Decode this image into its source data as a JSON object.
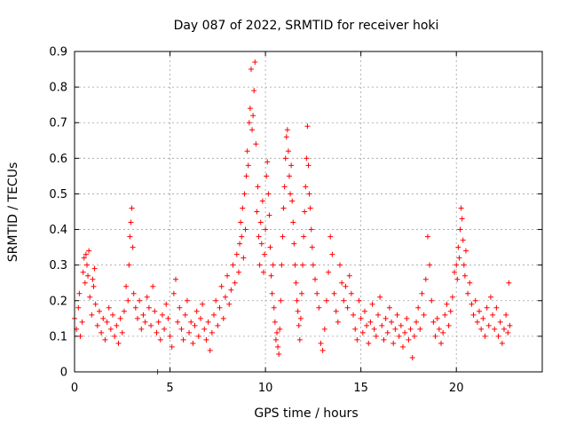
{
  "chart_data": {
    "type": "scatter",
    "title": "Day 087 of 2022, SRMTID for receiver hoki",
    "xlabel": "GPS time / hours",
    "ylabel": "SRMTID / TECUs",
    "xlim": [
      0,
      24.5
    ],
    "ylim": [
      0,
      0.9
    ],
    "xticks": [
      0,
      5,
      10,
      15,
      20
    ],
    "xtick_labels": [
      "0",
      "5",
      "10",
      "15",
      "20"
    ],
    "yticks": [
      0,
      0.1,
      0.2,
      0.3,
      0.4,
      0.5,
      0.6,
      0.7,
      0.8,
      0.9
    ],
    "ytick_labels": [
      "0",
      "0.1",
      "0.2",
      "0.3",
      "0.4",
      "0.5",
      "0.6",
      "0.7",
      "0.8",
      "0.9"
    ],
    "grid": true,
    "marker": "+",
    "color": "#ff0000",
    "series": [
      {
        "name": "SRMTID",
        "points": [
          [
            0.0,
            0.15
          ],
          [
            0.1,
            0.12
          ],
          [
            0.2,
            0.18
          ],
          [
            0.25,
            0.22
          ],
          [
            0.3,
            0.1
          ],
          [
            0.4,
            0.14
          ],
          [
            0.45,
            0.28
          ],
          [
            0.5,
            0.32
          ],
          [
            0.55,
            0.25
          ],
          [
            0.6,
            0.33
          ],
          [
            0.65,
            0.3
          ],
          [
            0.7,
            0.27
          ],
          [
            0.75,
            0.34
          ],
          [
            0.8,
            0.21
          ],
          [
            0.9,
            0.16
          ],
          [
            0.95,
            0.26
          ],
          [
            1.0,
            0.24
          ],
          [
            1.05,
            0.29
          ],
          [
            1.1,
            0.19
          ],
          [
            1.2,
            0.13
          ],
          [
            1.3,
            0.17
          ],
          [
            1.4,
            0.11
          ],
          [
            1.5,
            0.15
          ],
          [
            1.6,
            0.09
          ],
          [
            1.7,
            0.14
          ],
          [
            1.8,
            0.18
          ],
          [
            1.9,
            0.12
          ],
          [
            2.0,
            0.16
          ],
          [
            2.1,
            0.1
          ],
          [
            2.2,
            0.13
          ],
          [
            2.3,
            0.08
          ],
          [
            2.4,
            0.15
          ],
          [
            2.5,
            0.11
          ],
          [
            2.6,
            0.17
          ],
          [
            2.7,
            0.24
          ],
          [
            2.8,
            0.2
          ],
          [
            2.85,
            0.3
          ],
          [
            2.9,
            0.38
          ],
          [
            2.95,
            0.42
          ],
          [
            3.0,
            0.46
          ],
          [
            3.05,
            0.35
          ],
          [
            3.1,
            0.22
          ],
          [
            3.2,
            0.18
          ],
          [
            3.3,
            0.15
          ],
          [
            3.4,
            0.2
          ],
          [
            3.5,
            0.12
          ],
          [
            3.6,
            0.16
          ],
          [
            3.7,
            0.14
          ],
          [
            3.8,
            0.21
          ],
          [
            3.9,
            0.18
          ],
          [
            4.0,
            0.13
          ],
          [
            4.1,
            0.24
          ],
          [
            4.2,
            0.17
          ],
          [
            4.3,
            0.11
          ],
          [
            4.35,
            0.0
          ],
          [
            4.4,
            0.14
          ],
          [
            4.5,
            0.09
          ],
          [
            4.6,
            0.16
          ],
          [
            4.7,
            0.12
          ],
          [
            4.8,
            0.19
          ],
          [
            4.9,
            0.15
          ],
          [
            5.0,
            0.1
          ],
          [
            5.1,
            0.07
          ],
          [
            5.2,
            0.22
          ],
          [
            5.3,
            0.26
          ],
          [
            5.4,
            0.14
          ],
          [
            5.5,
            0.18
          ],
          [
            5.6,
            0.12
          ],
          [
            5.7,
            0.09
          ],
          [
            5.8,
            0.16
          ],
          [
            5.9,
            0.2
          ],
          [
            6.0,
            0.11
          ],
          [
            6.1,
            0.14
          ],
          [
            6.2,
            0.08
          ],
          [
            6.3,
            0.13
          ],
          [
            6.4,
            0.17
          ],
          [
            6.5,
            0.1
          ],
          [
            6.6,
            0.15
          ],
          [
            6.7,
            0.19
          ],
          [
            6.8,
            0.12
          ],
          [
            6.9,
            0.09
          ],
          [
            7.0,
            0.14
          ],
          [
            7.1,
            0.06
          ],
          [
            7.2,
            0.11
          ],
          [
            7.3,
            0.16
          ],
          [
            7.4,
            0.2
          ],
          [
            7.5,
            0.13
          ],
          [
            7.6,
            0.18
          ],
          [
            7.7,
            0.24
          ],
          [
            7.8,
            0.15
          ],
          [
            7.9,
            0.21
          ],
          [
            8.0,
            0.27
          ],
          [
            8.1,
            0.19
          ],
          [
            8.2,
            0.23
          ],
          [
            8.3,
            0.3
          ],
          [
            8.4,
            0.25
          ],
          [
            8.5,
            0.33
          ],
          [
            8.6,
            0.28
          ],
          [
            8.65,
            0.36
          ],
          [
            8.7,
            0.42
          ],
          [
            8.75,
            0.38
          ],
          [
            8.8,
            0.46
          ],
          [
            8.85,
            0.32
          ],
          [
            8.9,
            0.5
          ],
          [
            8.95,
            0.4
          ],
          [
            9.0,
            0.55
          ],
          [
            9.05,
            0.62
          ],
          [
            9.1,
            0.58
          ],
          [
            9.15,
            0.7
          ],
          [
            9.2,
            0.74
          ],
          [
            9.25,
            0.85
          ],
          [
            9.3,
            0.68
          ],
          [
            9.35,
            0.72
          ],
          [
            9.4,
            0.79
          ],
          [
            9.45,
            0.87
          ],
          [
            9.5,
            0.64
          ],
          [
            9.55,
            0.45
          ],
          [
            9.6,
            0.52
          ],
          [
            9.65,
            0.38
          ],
          [
            9.7,
            0.3
          ],
          [
            9.75,
            0.42
          ],
          [
            9.8,
            0.36
          ],
          [
            9.85,
            0.48
          ],
          [
            9.9,
            0.28
          ],
          [
            9.95,
            0.33
          ],
          [
            10.0,
            0.4
          ],
          [
            10.05,
            0.55
          ],
          [
            10.1,
            0.59
          ],
          [
            10.15,
            0.5
          ],
          [
            10.2,
            0.44
          ],
          [
            10.25,
            0.35
          ],
          [
            10.3,
            0.27
          ],
          [
            10.35,
            0.22
          ],
          [
            10.4,
            0.3
          ],
          [
            10.45,
            0.18
          ],
          [
            10.5,
            0.14
          ],
          [
            10.55,
            0.09
          ],
          [
            10.6,
            0.11
          ],
          [
            10.65,
            0.07
          ],
          [
            10.7,
            0.05
          ],
          [
            10.75,
            0.12
          ],
          [
            10.8,
            0.2
          ],
          [
            10.85,
            0.3
          ],
          [
            10.9,
            0.38
          ],
          [
            10.95,
            0.46
          ],
          [
            11.0,
            0.52
          ],
          [
            11.05,
            0.6
          ],
          [
            11.1,
            0.66
          ],
          [
            11.15,
            0.68
          ],
          [
            11.2,
            0.62
          ],
          [
            11.25,
            0.55
          ],
          [
            11.3,
            0.5
          ],
          [
            11.35,
            0.58
          ],
          [
            11.4,
            0.48
          ],
          [
            11.45,
            0.42
          ],
          [
            11.5,
            0.36
          ],
          [
            11.55,
            0.3
          ],
          [
            11.6,
            0.25
          ],
          [
            11.65,
            0.2
          ],
          [
            11.7,
            0.17
          ],
          [
            11.75,
            0.13
          ],
          [
            11.8,
            0.09
          ],
          [
            11.85,
            0.15
          ],
          [
            11.9,
            0.22
          ],
          [
            11.95,
            0.3
          ],
          [
            12.0,
            0.38
          ],
          [
            12.05,
            0.45
          ],
          [
            12.1,
            0.52
          ],
          [
            12.15,
            0.6
          ],
          [
            12.2,
            0.69
          ],
          [
            12.25,
            0.58
          ],
          [
            12.3,
            0.5
          ],
          [
            12.35,
            0.46
          ],
          [
            12.4,
            0.4
          ],
          [
            12.45,
            0.35
          ],
          [
            12.5,
            0.3
          ],
          [
            12.6,
            0.26
          ],
          [
            12.7,
            0.22
          ],
          [
            12.8,
            0.18
          ],
          [
            12.9,
            0.08
          ],
          [
            13.0,
            0.06
          ],
          [
            13.1,
            0.12
          ],
          [
            13.2,
            0.2
          ],
          [
            13.3,
            0.28
          ],
          [
            13.4,
            0.38
          ],
          [
            13.5,
            0.33
          ],
          [
            13.6,
            0.22
          ],
          [
            13.7,
            0.17
          ],
          [
            13.8,
            0.14
          ],
          [
            13.9,
            0.3
          ],
          [
            14.0,
            0.25
          ],
          [
            14.1,
            0.2
          ],
          [
            14.2,
            0.24
          ],
          [
            14.3,
            0.18
          ],
          [
            14.4,
            0.27
          ],
          [
            14.5,
            0.22
          ],
          [
            14.6,
            0.16
          ],
          [
            14.7,
            0.12
          ],
          [
            14.8,
            0.09
          ],
          [
            14.9,
            0.2
          ],
          [
            15.0,
            0.15
          ],
          [
            15.1,
            0.11
          ],
          [
            15.2,
            0.17
          ],
          [
            15.3,
            0.13
          ],
          [
            15.4,
            0.08
          ],
          [
            15.5,
            0.14
          ],
          [
            15.6,
            0.19
          ],
          [
            15.7,
            0.12
          ],
          [
            15.8,
            0.1
          ],
          [
            15.9,
            0.16
          ],
          [
            16.0,
            0.21
          ],
          [
            16.1,
            0.13
          ],
          [
            16.2,
            0.09
          ],
          [
            16.3,
            0.15
          ],
          [
            16.4,
            0.11
          ],
          [
            16.5,
            0.18
          ],
          [
            16.6,
            0.14
          ],
          [
            16.7,
            0.08
          ],
          [
            16.8,
            0.12
          ],
          [
            16.9,
            0.16
          ],
          [
            17.0,
            0.1
          ],
          [
            17.1,
            0.13
          ],
          [
            17.2,
            0.07
          ],
          [
            17.3,
            0.11
          ],
          [
            17.4,
            0.15
          ],
          [
            17.5,
            0.09
          ],
          [
            17.6,
            0.12
          ],
          [
            17.7,
            0.04
          ],
          [
            17.8,
            0.1
          ],
          [
            17.9,
            0.14
          ],
          [
            18.0,
            0.18
          ],
          [
            18.1,
            0.12
          ],
          [
            18.2,
            0.22
          ],
          [
            18.3,
            0.16
          ],
          [
            18.4,
            0.26
          ],
          [
            18.5,
            0.38
          ],
          [
            18.6,
            0.3
          ],
          [
            18.7,
            0.2
          ],
          [
            18.8,
            0.14
          ],
          [
            18.9,
            0.1
          ],
          [
            19.0,
            0.15
          ],
          [
            19.1,
            0.12
          ],
          [
            19.2,
            0.08
          ],
          [
            19.3,
            0.11
          ],
          [
            19.4,
            0.16
          ],
          [
            19.5,
            0.19
          ],
          [
            19.6,
            0.13
          ],
          [
            19.7,
            0.17
          ],
          [
            19.8,
            0.21
          ],
          [
            19.9,
            0.28
          ],
          [
            20.0,
            0.3
          ],
          [
            20.05,
            0.26
          ],
          [
            20.1,
            0.35
          ],
          [
            20.15,
            0.32
          ],
          [
            20.2,
            0.4
          ],
          [
            20.25,
            0.46
          ],
          [
            20.3,
            0.43
          ],
          [
            20.35,
            0.37
          ],
          [
            20.4,
            0.3
          ],
          [
            20.45,
            0.27
          ],
          [
            20.5,
            0.34
          ],
          [
            20.6,
            0.22
          ],
          [
            20.7,
            0.25
          ],
          [
            20.8,
            0.19
          ],
          [
            20.9,
            0.16
          ],
          [
            21.0,
            0.2
          ],
          [
            21.1,
            0.14
          ],
          [
            21.2,
            0.17
          ],
          [
            21.3,
            0.12
          ],
          [
            21.4,
            0.15
          ],
          [
            21.5,
            0.1
          ],
          [
            21.6,
            0.18
          ],
          [
            21.7,
            0.13
          ],
          [
            21.8,
            0.21
          ],
          [
            21.9,
            0.16
          ],
          [
            22.0,
            0.12
          ],
          [
            22.1,
            0.18
          ],
          [
            22.2,
            0.1
          ],
          [
            22.3,
            0.14
          ],
          [
            22.4,
            0.08
          ],
          [
            22.5,
            0.12
          ],
          [
            22.6,
            0.16
          ],
          [
            22.7,
            0.11
          ],
          [
            22.75,
            0.25
          ],
          [
            22.8,
            0.13
          ]
        ]
      }
    ]
  }
}
